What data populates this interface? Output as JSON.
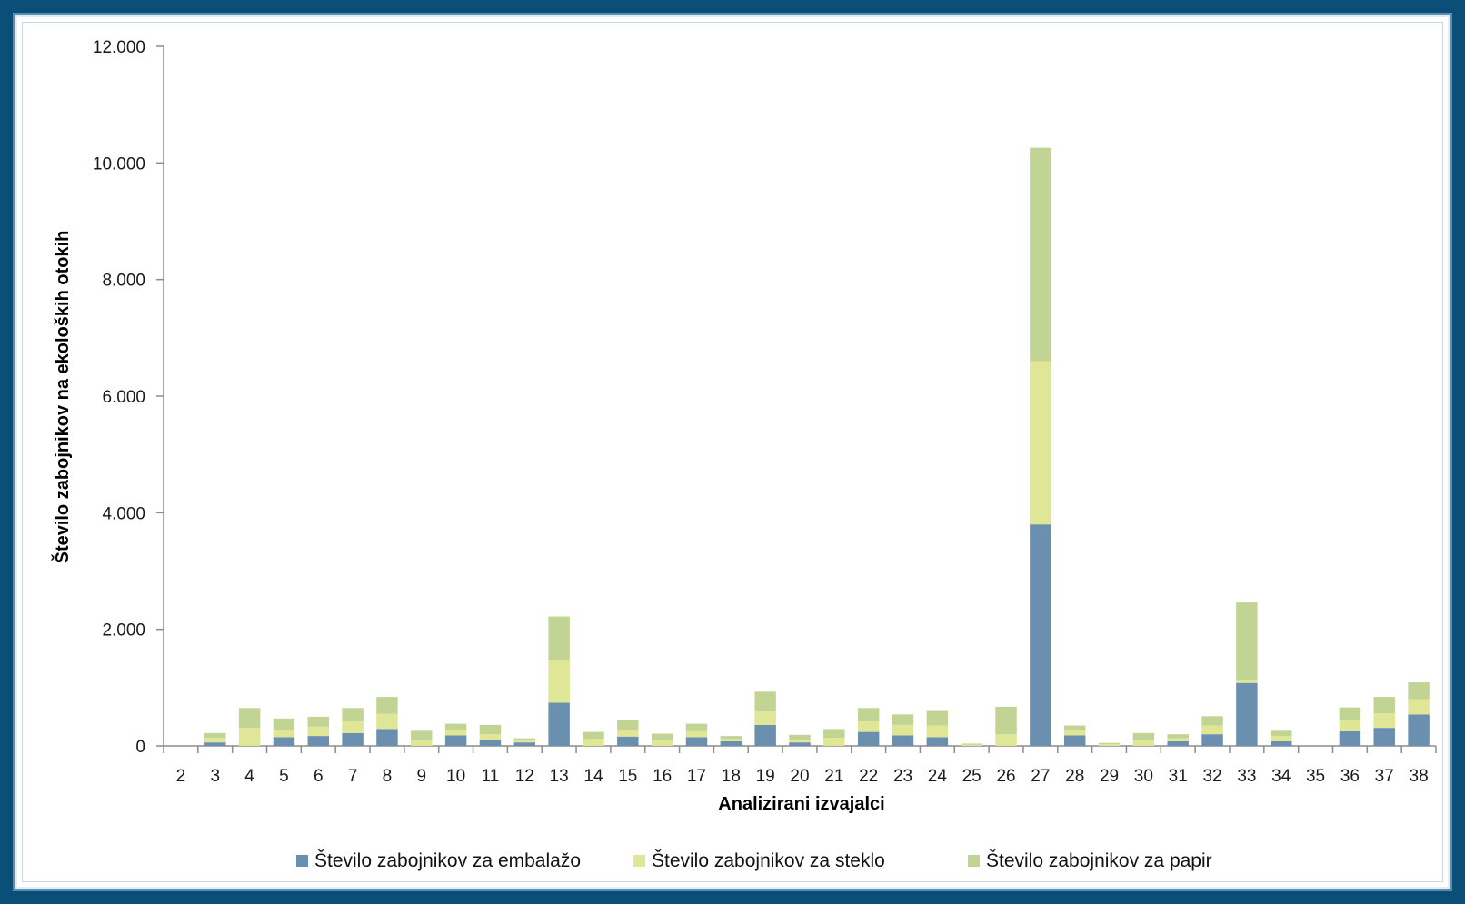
{
  "chart_data": {
    "type": "bar",
    "stacked": true,
    "title": "",
    "xlabel": "Analizirani izvajalci",
    "ylabel": "Število zabojnikov na ekoloških otokih",
    "ylim": [
      0,
      12000
    ],
    "y_ticks": [
      0,
      2000,
      4000,
      6000,
      8000,
      10000,
      12000
    ],
    "y_tick_labels": [
      "0",
      "2.000",
      "4.000",
      "6.000",
      "8.000",
      "10.000",
      "12.000"
    ],
    "grid": false,
    "legend_position": "bottom",
    "categories": [
      "2",
      "3",
      "4",
      "5",
      "6",
      "7",
      "8",
      "9",
      "10",
      "11",
      "12",
      "13",
      "14",
      "15",
      "16",
      "17",
      "18",
      "19",
      "20",
      "21",
      "22",
      "23",
      "24",
      "25",
      "26",
      "27",
      "28",
      "29",
      "30",
      "31",
      "32",
      "33",
      "34",
      "35",
      "36",
      "37",
      "38"
    ],
    "series": [
      {
        "name": "Število zabojnikov za embalažo",
        "color": "#6b8fae",
        "values": [
          0,
          60,
          0,
          150,
          170,
          220,
          290,
          0,
          180,
          110,
          60,
          740,
          0,
          160,
          0,
          150,
          80,
          360,
          60,
          0,
          240,
          180,
          150,
          0,
          0,
          3800,
          180,
          0,
          0,
          80,
          200,
          1080,
          80,
          0,
          250,
          310,
          540
        ]
      },
      {
        "name": "Število zabojnikov za steklo",
        "color": "#dfe695",
        "values": [
          0,
          80,
          310,
          130,
          160,
          200,
          260,
          90,
          100,
          90,
          30,
          740,
          120,
          120,
          90,
          100,
          40,
          230,
          50,
          140,
          180,
          180,
          200,
          20,
          200,
          2800,
          90,
          30,
          90,
          50,
          150,
          40,
          90,
          0,
          190,
          250,
          260
        ]
      },
      {
        "name": "Število zabojnikov za papir",
        "color": "#c2d494",
        "values": [
          0,
          80,
          340,
          190,
          170,
          230,
          290,
          170,
          100,
          160,
          40,
          740,
          120,
          160,
          120,
          130,
          50,
          340,
          80,
          150,
          230,
          180,
          250,
          20,
          470,
          3660,
          80,
          20,
          130,
          70,
          160,
          1340,
          90,
          0,
          220,
          280,
          290
        ]
      }
    ]
  }
}
